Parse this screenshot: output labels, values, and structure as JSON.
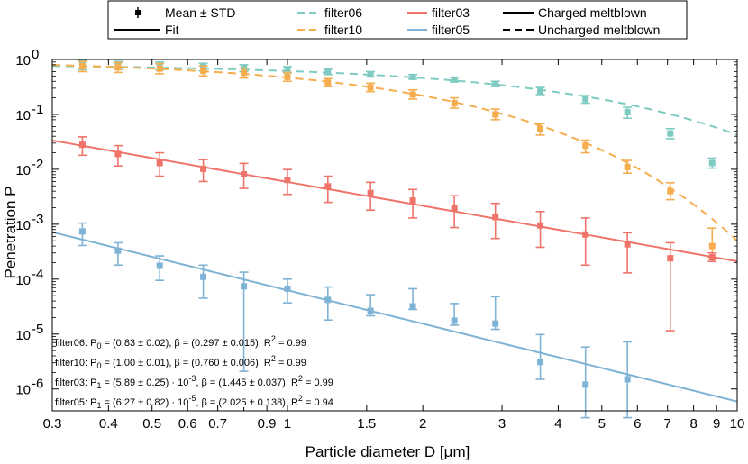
{
  "chart_data": {
    "type": "scatter",
    "xlabel": "Particle diameter D [μm]",
    "ylabel": "Penetration P",
    "xscale": "log",
    "yscale": "log",
    "xlim": [
      0.3,
      10
    ],
    "ylim": [
      4e-07,
      1
    ],
    "x_ticks": [
      0.3,
      0.4,
      0.5,
      0.6,
      0.7,
      0.9,
      1,
      1.5,
      2,
      3,
      4,
      5,
      6,
      7,
      8,
      9,
      10
    ],
    "x_tick_labels": [
      "0.3",
      "0.4",
      "0.5",
      "0.6",
      "0.7",
      "0.9",
      "1",
      "1.5",
      "2",
      "3",
      "4",
      "5",
      "6",
      "7",
      "8",
      "9",
      "10"
    ],
    "y_ticks": [
      1e-06,
      1e-05,
      0.0001,
      0.001,
      0.01,
      0.1,
      1
    ],
    "y_tick_labels": [
      {
        "base": "10",
        "exp": "-6"
      },
      {
        "base": "10",
        "exp": "-5"
      },
      {
        "base": "10",
        "exp": "-4"
      },
      {
        "base": "10",
        "exp": "-3"
      },
      {
        "base": "10",
        "exp": "-2"
      },
      {
        "base": "10",
        "exp": "-1"
      },
      {
        "base": "10",
        "exp": "0"
      }
    ],
    "x": [
      0.35,
      0.42,
      0.52,
      0.65,
      0.8,
      1.0,
      1.23,
      1.53,
      1.9,
      2.35,
      2.9,
      3.65,
      4.6,
      5.7,
      7.1,
      8.8
    ],
    "series": [
      {
        "name": "filter06",
        "color": "#7fcbc3",
        "fit_style": "dashed",
        "mean": [
          0.8,
          0.78,
          0.76,
          0.73,
          0.7,
          0.65,
          0.6,
          0.54,
          0.48,
          0.43,
          0.36,
          0.27,
          0.19,
          0.11,
          0.045,
          0.013
        ],
        "lower": [
          0.65,
          0.66,
          0.64,
          0.62,
          0.6,
          0.57,
          0.53,
          0.48,
          0.44,
          0.39,
          0.32,
          0.23,
          0.16,
          0.085,
          0.036,
          0.0105
        ],
        "upper": [
          0.97,
          0.92,
          0.9,
          0.85,
          0.8,
          0.74,
          0.67,
          0.6,
          0.53,
          0.47,
          0.4,
          0.31,
          0.22,
          0.135,
          0.055,
          0.016
        ],
        "fit": {
          "model": "exp",
          "p": 0.83,
          "beta": 0.297
        }
      },
      {
        "name": "filter10",
        "color": "#f5ad4e",
        "fit_style": "dashed",
        "mean": [
          0.75,
          0.72,
          0.68,
          0.62,
          0.57,
          0.48,
          0.38,
          0.31,
          0.23,
          0.16,
          0.1,
          0.055,
          0.027,
          0.011,
          0.004,
          0.0004
        ],
        "lower": [
          0.6,
          0.58,
          0.55,
          0.5,
          0.46,
          0.4,
          0.32,
          0.26,
          0.19,
          0.13,
          0.08,
          0.042,
          0.02,
          0.0085,
          0.0028,
          0.00025
        ],
        "upper": [
          0.92,
          0.88,
          0.84,
          0.76,
          0.7,
          0.58,
          0.45,
          0.37,
          0.28,
          0.2,
          0.125,
          0.068,
          0.034,
          0.0145,
          0.0057,
          0.00085
        ],
        "fit": {
          "model": "exp",
          "p": 1.0,
          "beta": 0.76
        }
      },
      {
        "name": "filter03",
        "color": "#f0736a",
        "fit_style": "solid",
        "mean": [
          0.028,
          0.019,
          0.013,
          0.0102,
          0.0081,
          0.0064,
          0.0049,
          0.0037,
          0.0027,
          0.002,
          0.00135,
          0.00095,
          0.00065,
          0.00043,
          0.00024,
          0.00025
        ],
        "lower": [
          0.018,
          0.0115,
          0.0075,
          0.006,
          0.0045,
          0.0035,
          0.0025,
          0.0018,
          0.0013,
          0.00087,
          0.00055,
          0.00038,
          0.00018,
          0.00013,
          1.15e-05,
          0.00021
        ],
        "upper": [
          0.039,
          0.027,
          0.02,
          0.015,
          0.0128,
          0.0099,
          0.0075,
          0.0058,
          0.0043,
          0.0033,
          0.0024,
          0.0017,
          0.0013,
          0.0007,
          0.00046,
          0.0003
        ],
        "fit": {
          "model": "power",
          "p": 0.00589,
          "beta": 1.445
        }
      },
      {
        "name": "filter05",
        "color": "#7fb3d6",
        "fit_style": "solid",
        "mean": [
          0.00074,
          0.00033,
          0.000175,
          0.00011,
          7.4e-05,
          6.7e-05,
          4.2e-05,
          2.65e-05,
          3.2e-05,
          1.75e-05,
          1.55e-05,
          3.1e-06,
          1.2e-06,
          1.5e-06
        ],
        "lower": [
          0.00041,
          0.00018,
          9.5e-05,
          4.5e-05,
          2.1e-06,
          3.7e-05,
          1.8e-05,
          2.15e-05,
          2.8e-05,
          1.45e-05,
          1.22e-05,
          1.5e-06,
          3e-07,
          3e-07
        ],
        "upper": [
          0.00105,
          0.00046,
          0.000265,
          0.00018,
          0.000134,
          0.0001,
          7.2e-05,
          5.2e-05,
          6.7e-05,
          3.6e-05,
          4.8e-05,
          9.8e-06,
          5.8e-06,
          7.2e-06
        ],
        "fit": {
          "model": "power",
          "p": 6.27e-05,
          "beta": 2.025
        }
      }
    ],
    "legend": [
      {
        "label": "Mean ± STD",
        "kind": "marker",
        "color": "#000000"
      },
      {
        "label": "filter06",
        "kind": "dashed",
        "color": "#7fcbc3"
      },
      {
        "label": "filter03",
        "kind": "solid",
        "color": "#f0736a"
      },
      {
        "label": "Charged meltblown",
        "kind": "solid",
        "color": "#000000"
      },
      {
        "label": "Fit",
        "kind": "solid",
        "color": "#000000"
      },
      {
        "label": "filter10",
        "kind": "dashed",
        "color": "#f5ad4e"
      },
      {
        "label": "filter05",
        "kind": "solid",
        "color": "#7fb3d6"
      },
      {
        "label": "Uncharged meltblown",
        "kind": "dashed",
        "color": "#000000"
      }
    ],
    "annotations": [
      {
        "name": "filter06",
        "pname": "P",
        "psub": "0",
        "rest": " = (0.83 ± 0.02), β = (0.297 ± 0.015), R",
        "sup": "2",
        "tail": " = 0.99"
      },
      {
        "name": "filter10",
        "pname": "P",
        "psub": "0",
        "rest": " = (1.00 ± 0.01), β = (0.760 ± 0.006), R",
        "sup": "2",
        "tail": " = 0.99"
      },
      {
        "name": "filter03",
        "pname": "P",
        "psub": "1",
        "rest": " = (5.89 ± 0.25) · 10",
        "sup1": "-3",
        "rest2": ", β = (1.445 ± 0.037), R",
        "sup": "2",
        "tail": " = 0.99"
      },
      {
        "name": "filter05",
        "pname": "P",
        "psub": "1",
        "rest": " = (6.27 ± 0.82) · 10",
        "sup1": "-5",
        "rest2": ", β = (2.025 ± 0.138), R",
        "sup": "2",
        "tail": " = 0.94"
      }
    ]
  }
}
